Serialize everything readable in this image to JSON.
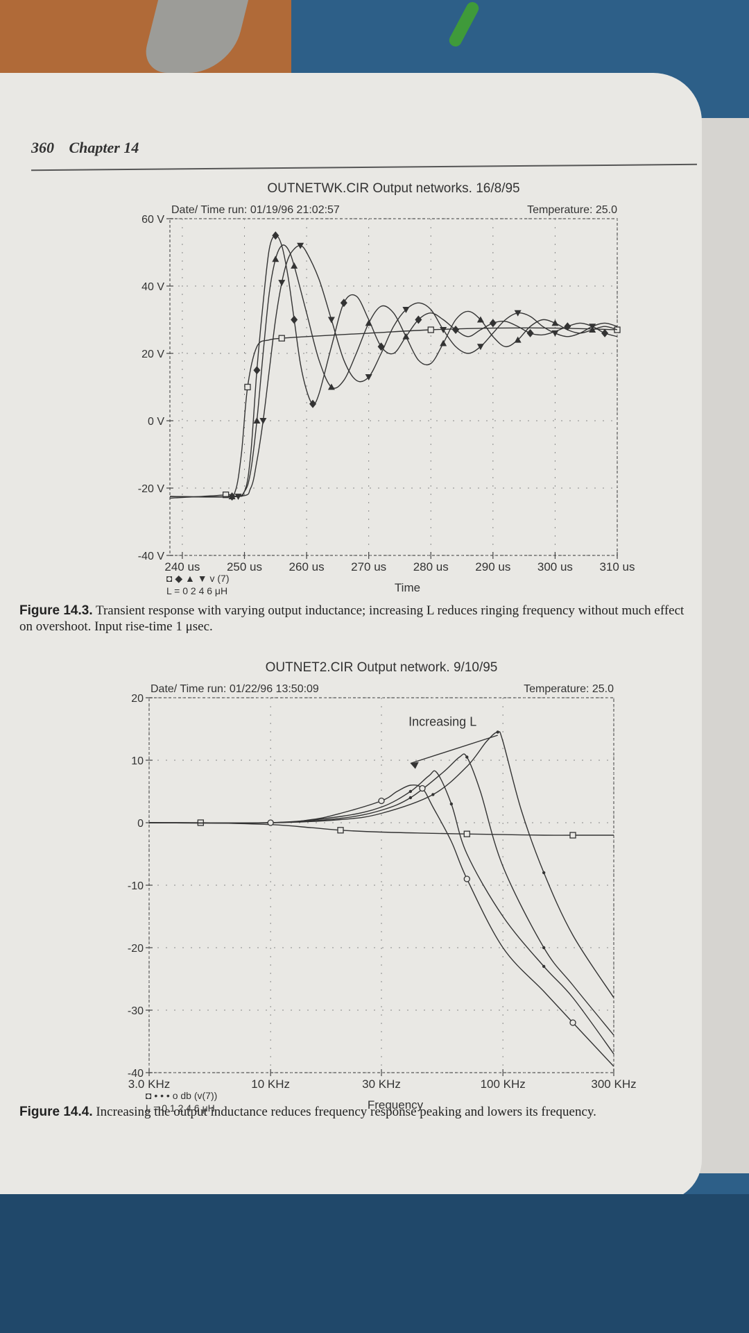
{
  "page": {
    "number": "360",
    "chapter": "Chapter 14"
  },
  "figure1": {
    "caption_label": "Figure 14.3.",
    "caption_text": "Transient response with varying output inductance; increasing L reduces ringing frequency without much effect on overshoot. Input rise-time 1 μsec."
  },
  "figure2": {
    "caption_label": "Figure 14.4.",
    "caption_text": "Increasing the output inductance reduces frequency response peaking and lowers its frequency."
  },
  "chart_data": [
    {
      "type": "line",
      "title": "OUTNETWK.CIR Output networks. 16/8/95",
      "header_left": "Date/ Time run: 01/19/96 21:02:57",
      "header_right": "Temperature: 25.0",
      "xlabel": "Time",
      "ylabel": "",
      "xlim": [
        238,
        310
      ],
      "ylim": [
        -40,
        60
      ],
      "x_ticks": [
        "240 us",
        "250 us",
        "260 us",
        "270 us",
        "280 us",
        "290 us",
        "300 us",
        "310 us"
      ],
      "x_tick_values": [
        240,
        250,
        260,
        270,
        280,
        290,
        300,
        310
      ],
      "y_ticks": [
        "60 V",
        "40 V",
        "20 V",
        "0 V",
        "-20 V",
        "-40 V"
      ],
      "y_tick_values": [
        60,
        40,
        20,
        0,
        -20,
        -40
      ],
      "grid": true,
      "legend_markers": "◘ ◆ ▲ ▼ v (7)",
      "legend_values": "L = 0  2  4  6 μH",
      "series": [
        {
          "marker": "square",
          "label": "0",
          "x": [
            238,
            247,
            248.5,
            249.5,
            250.5,
            252,
            254,
            256,
            260,
            270,
            280,
            290,
            300,
            310
          ],
          "y": [
            -23,
            -22,
            -21,
            -10,
            10,
            22,
            24,
            24.5,
            25,
            26,
            27,
            27.5,
            27.5,
            27
          ]
        },
        {
          "marker": "diamond",
          "label": "2",
          "x": [
            238,
            248,
            250,
            251,
            252,
            253,
            254,
            255,
            256,
            257,
            258,
            259,
            260,
            261,
            262,
            264,
            266,
            268,
            270,
            272,
            274,
            276,
            278,
            280,
            282,
            284,
            286,
            288,
            290,
            292,
            294,
            296,
            298,
            300,
            302,
            304,
            306,
            308,
            310
          ],
          "y": [
            -22.5,
            -22.5,
            -21,
            -10,
            15,
            35,
            51,
            55,
            52,
            43,
            30,
            17,
            9,
            5,
            8,
            22,
            35,
            37,
            30,
            22,
            20,
            25,
            30,
            32,
            30,
            27,
            25,
            27,
            29,
            29.5,
            28,
            26,
            25.5,
            26.5,
            28,
            29,
            28,
            26,
            25
          ]
        },
        {
          "marker": "triangle-up",
          "label": "4",
          "x": [
            238,
            248,
            250,
            251,
            252,
            253,
            254,
            255,
            256,
            257,
            258,
            260,
            262,
            264,
            266,
            268,
            270,
            272,
            274,
            276,
            278,
            280,
            282,
            284,
            286,
            288,
            290,
            292,
            294,
            296,
            298,
            300,
            302,
            304,
            306,
            308,
            310
          ],
          "y": [
            -22.5,
            -22.5,
            -21,
            -15,
            0,
            20,
            38,
            48,
            52,
            51,
            46,
            32,
            18,
            10,
            12,
            20,
            29,
            34,
            32,
            25,
            18,
            17,
            23,
            30,
            32.5,
            30,
            25,
            22,
            24,
            28,
            30,
            29,
            27,
            26,
            27,
            28,
            27
          ]
        },
        {
          "marker": "triangle-down",
          "label": "6",
          "x": [
            238,
            249,
            251,
            252,
            253,
            254,
            255,
            256,
            257,
            258,
            259,
            260,
            262,
            264,
            266,
            268,
            270,
            272,
            274,
            276,
            278,
            280,
            282,
            284,
            286,
            288,
            290,
            292,
            294,
            296,
            298,
            300,
            302,
            304,
            306,
            308,
            310
          ],
          "y": [
            -22.5,
            -22.5,
            -20,
            -12,
            0,
            15,
            30,
            41,
            48,
            51,
            52,
            50,
            42,
            30,
            18,
            12,
            13,
            20,
            28,
            33,
            35,
            33,
            27,
            22,
            20,
            22,
            26,
            30,
            32,
            31,
            28,
            26,
            25,
            26,
            28,
            29,
            28
          ]
        }
      ]
    },
    {
      "type": "line",
      "title": "OUTNET2.CIR Output network. 9/10/95",
      "header_left": "Date/ Time run: 01/22/96 13:50:09",
      "header_right": "Temperature: 25.0",
      "xlabel": "Frequency",
      "ylabel": "",
      "x_scale": "log",
      "xlim": [
        3000,
        300000
      ],
      "ylim": [
        -40,
        20
      ],
      "x_ticks": [
        "3.0 KHz",
        "10 KHz",
        "30 KHz",
        "100 KHz",
        "300 KHz"
      ],
      "x_tick_values": [
        3000,
        10000,
        30000,
        100000,
        300000
      ],
      "y_ticks": [
        "20",
        "10",
        "0",
        "-10",
        "-20",
        "-30",
        "-40"
      ],
      "y_tick_values": [
        20,
        10,
        0,
        -10,
        -20,
        -30,
        -40
      ],
      "grid": true,
      "annotation": "Increasing L",
      "legend_markers": "◘ • • • o db (v(7))",
      "legend_values": "L = 0  1  2  4  6 μH",
      "series": [
        {
          "marker": "square",
          "label": "0",
          "x": [
            3000,
            5000,
            10000,
            15000,
            20000,
            30000,
            50000,
            70000,
            100000,
            150000,
            200000,
            300000
          ],
          "y": [
            0,
            0,
            -0.3,
            -0.8,
            -1.2,
            -1.5,
            -1.7,
            -1.8,
            -1.9,
            -2,
            -2,
            -2
          ]
        },
        {
          "marker": "dot",
          "label": "1",
          "x": [
            3000,
            10000,
            20000,
            30000,
            50000,
            70000,
            85000,
            95000,
            100000,
            120000,
            150000,
            200000,
            300000
          ],
          "y": [
            0,
            0,
            0.5,
            1.5,
            4.5,
            9,
            13,
            14.5,
            13,
            2,
            -8,
            -18,
            -28
          ]
        },
        {
          "marker": "dot",
          "label": "2",
          "x": [
            3000,
            10000,
            20000,
            30000,
            40000,
            55000,
            65000,
            70000,
            80000,
            100000,
            150000,
            200000,
            300000
          ],
          "y": [
            0,
            0,
            0.7,
            2,
            4,
            8,
            10.5,
            10.5,
            5,
            -7,
            -20,
            -26,
            -34
          ]
        },
        {
          "marker": "dot",
          "label": "4",
          "x": [
            3000,
            10000,
            20000,
            30000,
            40000,
            48000,
            52000,
            60000,
            70000,
            100000,
            150000,
            200000,
            300000
          ],
          "y": [
            0,
            0,
            1,
            2.5,
            5,
            7.5,
            8,
            3,
            -5,
            -15,
            -23,
            -28,
            -37
          ]
        },
        {
          "marker": "circle",
          "label": "6",
          "x": [
            3000,
            10000,
            15000,
            20000,
            30000,
            35000,
            40000,
            45000,
            50000,
            60000,
            70000,
            100000,
            150000,
            200000,
            300000
          ],
          "y": [
            0,
            0,
            0.5,
            1.5,
            3.5,
            5,
            6,
            5.5,
            2.5,
            -3,
            -9,
            -20,
            -27,
            -32,
            -39
          ]
        }
      ]
    }
  ]
}
